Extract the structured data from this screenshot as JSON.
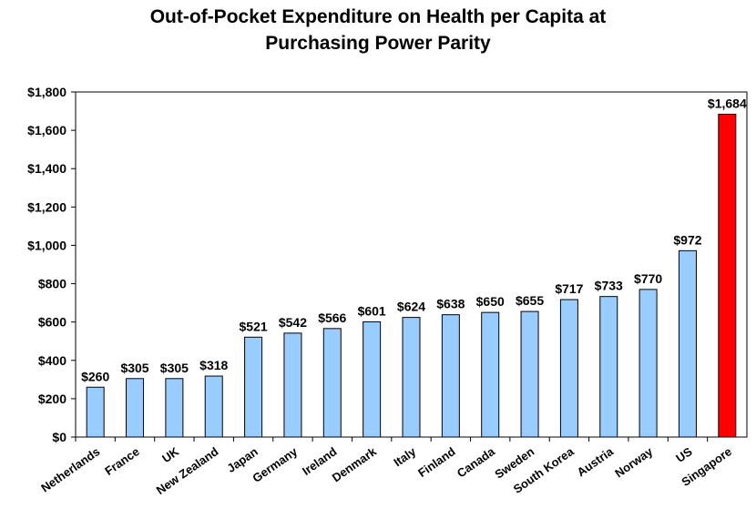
{
  "chart_data": {
    "type": "bar",
    "title_lines": [
      "Out-of-Pocket Expenditure on Health per Capita at",
      "Purchasing Power Parity"
    ],
    "categories": [
      "Netherlands",
      "France",
      "UK",
      "New Zealand",
      "Japan",
      "Germany",
      "Ireland",
      "Denmark",
      "Italy",
      "Finland",
      "Canada",
      "Sweden",
      "South Korea",
      "Austria",
      "Norway",
      "US",
      "Singapore"
    ],
    "values": [
      260,
      305,
      305,
      318,
      521,
      542,
      566,
      601,
      624,
      638,
      650,
      655,
      717,
      733,
      770,
      972,
      1684
    ],
    "value_labels": [
      "$260",
      "$305",
      "$305",
      "$318",
      "$521",
      "$542",
      "$566",
      "$601",
      "$624",
      "$638",
      "$650",
      "$655",
      "$717",
      "$733",
      "$770",
      "$972",
      "$1,684"
    ],
    "ylim": [
      0,
      1800
    ],
    "yticks": [
      0,
      200,
      400,
      600,
      800,
      1000,
      1200,
      1400,
      1600,
      1800
    ],
    "ytick_labels": [
      "$0",
      "$200",
      "$400",
      "$600",
      "$800",
      "$1,000",
      "$1,200",
      "$1,400",
      "$1,600",
      "$1,800"
    ],
    "xlabel": "",
    "ylabel": "",
    "grid": false,
    "bar_color": "#99ccff",
    "highlight_color": "#ff0000",
    "highlight_category": "Singapore"
  }
}
